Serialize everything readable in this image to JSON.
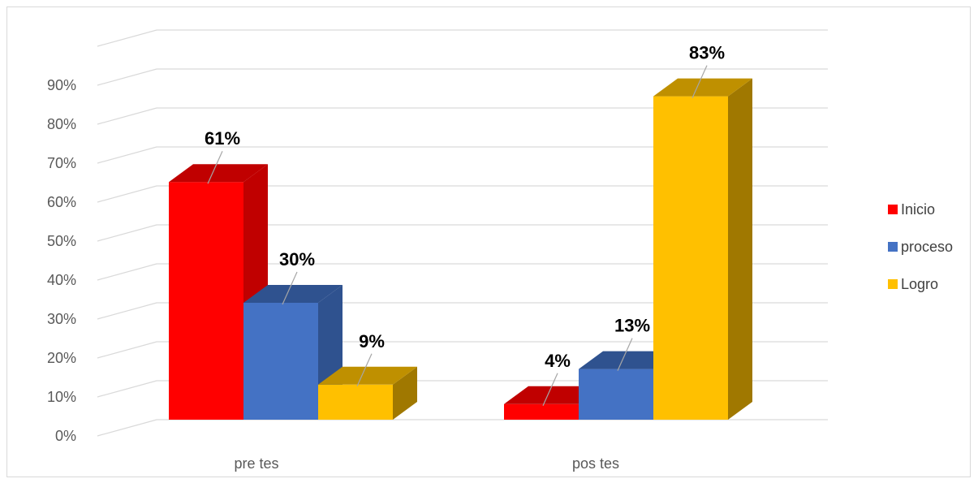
{
  "chart_data": {
    "type": "bar",
    "categories": [
      "pre tes",
      "pos tes"
    ],
    "series": [
      {
        "name": "Inicio",
        "values": [
          61,
          4
        ],
        "labels": [
          "61%",
          "4%"
        ],
        "color": "#ff0000",
        "side": "#c00000",
        "top": "#c00000"
      },
      {
        "name": "proceso",
        "values": [
          30,
          13
        ],
        "labels": [
          "30%",
          "13%"
        ],
        "color": "#4472c4",
        "side": "#2f528f",
        "top": "#2f528f"
      },
      {
        "name": "Logro",
        "values": [
          9,
          83
        ],
        "labels": [
          "9%",
          "83%"
        ],
        "color": "#ffc000",
        "side": "#a07800",
        "top": "#bf9000"
      }
    ],
    "yticks": [
      "0%",
      "10%",
      "20%",
      "30%",
      "40%",
      "50%",
      "60%",
      "70%",
      "80%",
      "90%"
    ],
    "ylim": [
      0,
      100
    ],
    "grid": true,
    "legend": "right",
    "three_d": true
  }
}
